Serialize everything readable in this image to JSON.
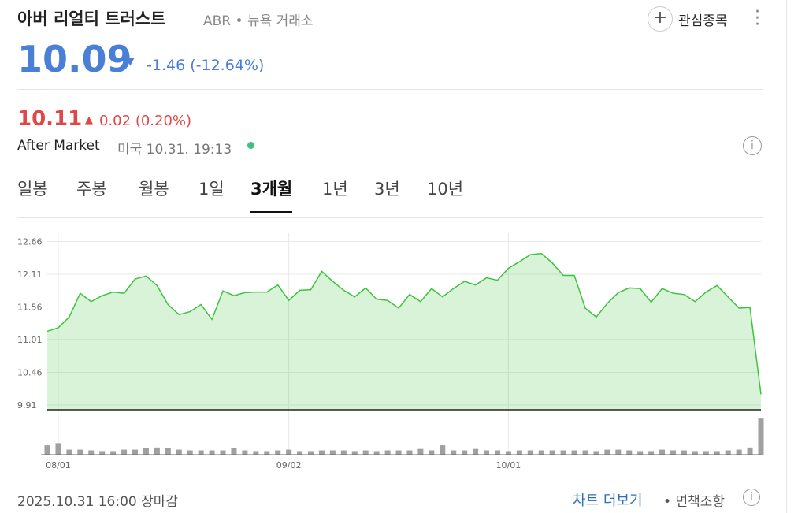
{
  "header": {
    "name": "아버 리얼티 트러스트",
    "ticker": "ABR",
    "exchange": "뉴욕 거래소",
    "watch": "관심종목"
  },
  "quote": {
    "price": "10.09",
    "change": "-1.46",
    "change_pct": "(-12.64%)"
  },
  "after_market": {
    "price": "10.11",
    "change": "0.02",
    "change_pct": "(0.20%)",
    "label": "After Market",
    "time": "미국 10.31. 19:13"
  },
  "tabs": {
    "items": [
      "일봉",
      "주봉",
      "월봉",
      "1일",
      "3개월",
      "1년",
      "3년",
      "10년"
    ],
    "active": 4
  },
  "chart_data": {
    "type": "area",
    "color": "#3cc43c",
    "categories": [
      null,
      "08/01",
      null,
      null,
      null,
      null,
      null,
      null,
      null,
      null,
      null,
      null,
      null,
      null,
      null,
      null,
      null,
      null,
      null,
      null,
      null,
      null,
      "09/02",
      null,
      null,
      null,
      null,
      null,
      null,
      null,
      null,
      null,
      null,
      null,
      null,
      null,
      null,
      null,
      null,
      null,
      null,
      null,
      "10/01",
      null,
      null,
      null,
      null,
      null,
      null,
      null,
      null,
      null,
      null,
      null,
      null,
      null,
      null,
      null,
      null,
      null,
      null,
      null,
      null,
      null,
      null,
      null
    ],
    "values": [
      11.15,
      11.21,
      11.39,
      11.79,
      11.65,
      11.75,
      11.81,
      11.79,
      12.03,
      12.08,
      11.92,
      11.6,
      11.43,
      11.48,
      11.6,
      11.35,
      11.83,
      11.75,
      11.8,
      11.81,
      11.81,
      11.93,
      11.67,
      11.84,
      11.85,
      12.16,
      11.99,
      11.84,
      11.73,
      11.88,
      11.69,
      11.67,
      11.54,
      11.77,
      11.65,
      11.87,
      11.73,
      11.87,
      11.99,
      11.93,
      12.05,
      12.01,
      12.21,
      12.32,
      12.44,
      12.46,
      12.3,
      12.09,
      12.09,
      11.54,
      11.39,
      11.62,
      11.8,
      11.88,
      11.87,
      11.64,
      11.87,
      11.79,
      11.77,
      11.65,
      11.81,
      11.92,
      11.73,
      11.54,
      11.55,
      10.09
    ],
    "volume": [
      13,
      16,
      7,
      7,
      6,
      5,
      5,
      7,
      7,
      9,
      10,
      9,
      7,
      6,
      6,
      6,
      6,
      9,
      6,
      5,
      5,
      6,
      7,
      5,
      5,
      6,
      6,
      6,
      5,
      6,
      5,
      6,
      6,
      6,
      8,
      6,
      13,
      6,
      6,
      8,
      6,
      6,
      5,
      6,
      6,
      6,
      6,
      6,
      6,
      6,
      5,
      7,
      7,
      6,
      5,
      5,
      7,
      6,
      6,
      5,
      5,
      5,
      6,
      7,
      10,
      50
    ],
    "ylim": [
      9.83,
      12.8
    ],
    "yticks": [
      9.91,
      10.46,
      11.01,
      11.56,
      12.11,
      12.66
    ],
    "y2lim": [
      0,
      60
    ],
    "grid": true
  },
  "footer": {
    "timestamp": "2025.10.31 16:00 장마감",
    "more": "차트 더보기",
    "disclaimer": "면책조항"
  }
}
